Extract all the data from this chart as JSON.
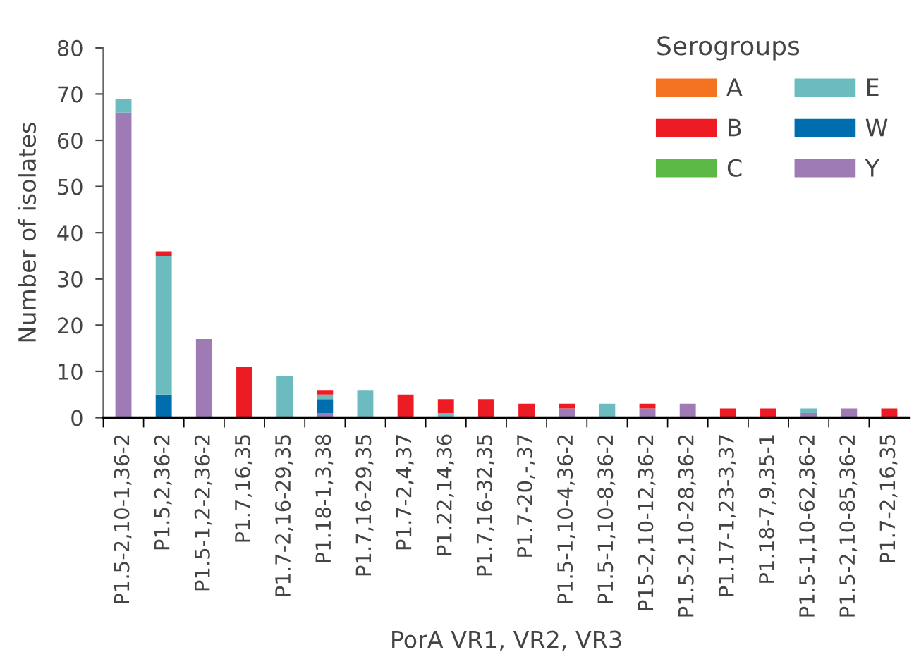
{
  "chart_data": {
    "type": "bar",
    "stacked": true,
    "xlabel": "PorA VR1, VR2, VR3",
    "ylabel": "Number of isolates",
    "legend_title": "Serogroups",
    "legend": "top right",
    "categories": [
      "P1.5-2,10-1,36-2",
      "P1.5,2,36-2",
      "P1.5-1,2-2,36-2",
      "P1.7,16,35",
      "P1.7-2,16-29,35",
      "P1.18-1,3,38",
      "P1.7,16-29,35",
      "P1.7-2,4,37",
      "P1.22,14,36",
      "P1.7,16-32,35",
      "P1.7-20,-,37",
      "P1.5-1,10-4,36-2",
      "P1.5-1,10-8,36-2",
      "P15-2,10-12,36-2",
      "P1.5-2,10-28,36-2",
      "P1.17-1,23-3,37",
      "P1.18-7,9,35-1",
      "P1.5-1,10-62,36-2",
      "P1.5-2,10-85,36-2",
      "P1.7-2,16,35"
    ],
    "series": [
      {
        "name": "Y",
        "color": "#9e7bb5",
        "values": [
          66,
          0,
          17,
          0,
          0,
          1,
          0,
          0,
          0,
          0,
          0,
          2,
          0,
          2,
          3,
          0,
          0,
          1,
          2,
          0
        ]
      },
      {
        "name": "W",
        "color": "#006eae",
        "values": [
          0,
          5,
          0,
          0,
          0,
          3,
          0,
          0,
          0,
          0,
          0,
          0,
          0,
          0,
          0,
          0,
          0,
          0,
          0,
          0
        ]
      },
      {
        "name": "E",
        "color": "#6bbbbf",
        "values": [
          3,
          30,
          0,
          0,
          9,
          1,
          6,
          0,
          1,
          0,
          0,
          0,
          3,
          0,
          0,
          0,
          0,
          1,
          0,
          0
        ]
      },
      {
        "name": "C",
        "color": "#5cb946",
        "values": [
          0,
          0,
          0,
          0,
          0,
          0,
          0,
          0,
          0,
          0,
          0,
          0,
          0,
          0,
          0,
          0,
          0,
          0,
          0,
          0
        ]
      },
      {
        "name": "B",
        "color": "#ed1c24",
        "values": [
          0,
          1,
          0,
          11,
          0,
          1,
          0,
          5,
          3,
          4,
          3,
          1,
          0,
          1,
          0,
          2,
          2,
          0,
          0,
          2
        ]
      },
      {
        "name": "A",
        "color": "#f47321",
        "values": [
          0,
          0,
          0,
          0,
          0,
          0,
          0,
          0,
          0,
          0,
          0,
          0,
          0,
          0,
          0,
          0,
          0,
          0,
          0,
          0
        ]
      }
    ],
    "ylim": [
      0,
      80
    ],
    "yticks": [
      0,
      10,
      20,
      30,
      40,
      50,
      60,
      70,
      80
    ]
  }
}
